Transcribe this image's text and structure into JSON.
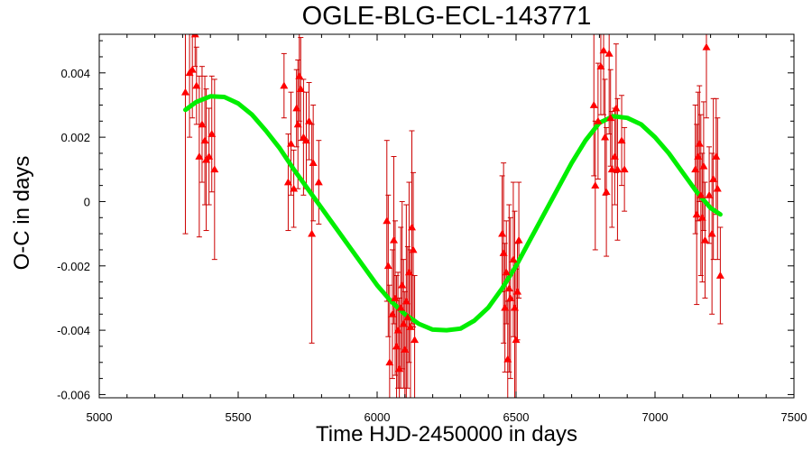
{
  "chart_data": {
    "type": "scatter",
    "title": "OGLE-BLG-ECL-143771",
    "xlabel": "Time HJD-2450000 in days",
    "ylabel": "O-C in days",
    "xlim": [
      5000,
      7500
    ],
    "ylim": [
      -0.0061,
      0.0052
    ],
    "xticks": [
      5000,
      5500,
      6000,
      6500,
      7000,
      7500
    ],
    "xtick_labels": [
      "5000",
      "5500",
      "6000",
      "6500",
      "7000",
      "7500"
    ],
    "yticks": [
      -0.006,
      -0.004,
      -0.002,
      0,
      0.002,
      0.004
    ],
    "ytick_labels": [
      "-0.006",
      "-0.004",
      "-0.002",
      "0",
      "0.002",
      "0.004"
    ],
    "grid": false,
    "colors": {
      "points": "#ff0000",
      "errorbars": "#cc0000",
      "fit": "#00ee00"
    },
    "series": [
      {
        "kind": "points-with-errorbars",
        "points": [
          {
            "x": 5310,
            "y": 0.0034,
            "err": 0.0044
          },
          {
            "x": 5325,
            "y": 0.004,
            "err": 0.002
          },
          {
            "x": 5335,
            "y": 0.0041,
            "err": 0.0015
          },
          {
            "x": 5345,
            "y": 0.0052,
            "err": 0.001
          },
          {
            "x": 5350,
            "y": 0.0036,
            "err": 0.0012
          },
          {
            "x": 5360,
            "y": 0.0014,
            "err": 0.0025
          },
          {
            "x": 5370,
            "y": 0.0024,
            "err": 0.0018
          },
          {
            "x": 5380,
            "y": 0.0019,
            "err": 0.002
          },
          {
            "x": 5385,
            "y": 0.0013,
            "err": 0.0022
          },
          {
            "x": 5395,
            "y": 0.0014,
            "err": 0.0015
          },
          {
            "x": 5405,
            "y": 0.0021,
            "err": 0.0018
          },
          {
            "x": 5415,
            "y": 0.001,
            "err": 0.0028
          },
          {
            "x": 5665,
            "y": 0.0036,
            "err": 0.001
          },
          {
            "x": 5680,
            "y": 0.0006,
            "err": 0.0015
          },
          {
            "x": 5690,
            "y": 0.0018,
            "err": 0.0016
          },
          {
            "x": 5700,
            "y": 0.0004,
            "err": 0.0012
          },
          {
            "x": 5710,
            "y": 0.0029,
            "err": 0.0012
          },
          {
            "x": 5715,
            "y": 0.0024,
            "err": 0.002
          },
          {
            "x": 5720,
            "y": 0.0039,
            "err": 0.0014
          },
          {
            "x": 5725,
            "y": 0.0035,
            "err": 0.0016
          },
          {
            "x": 5735,
            "y": 0.002,
            "err": 0.0018
          },
          {
            "x": 5745,
            "y": 0.0019,
            "err": 0.0015
          },
          {
            "x": 5755,
            "y": 0.0025,
            "err": 0.0012
          },
          {
            "x": 5765,
            "y": -0.001,
            "err": 0.0034
          },
          {
            "x": 5770,
            "y": 0.0012,
            "err": 0.0018
          },
          {
            "x": 5790,
            "y": 0.0006,
            "err": 0.0013
          },
          {
            "x": 6035,
            "y": -0.0006,
            "err": 0.0025
          },
          {
            "x": 6040,
            "y": -0.002,
            "err": 0.0022
          },
          {
            "x": 6045,
            "y": -0.005,
            "err": 0.0024
          },
          {
            "x": 6055,
            "y": -0.0035,
            "err": 0.002
          },
          {
            "x": 6060,
            "y": -0.0012,
            "err": 0.0026
          },
          {
            "x": 6065,
            "y": -0.003,
            "err": 0.0024
          },
          {
            "x": 6070,
            "y": -0.0045,
            "err": 0.0022
          },
          {
            "x": 6075,
            "y": -0.004,
            "err": 0.0018
          },
          {
            "x": 6080,
            "y": -0.0052,
            "err": 0.0022
          },
          {
            "x": 6085,
            "y": -0.0033,
            "err": 0.0025
          },
          {
            "x": 6090,
            "y": -0.0026,
            "err": 0.0026
          },
          {
            "x": 6095,
            "y": -0.0038,
            "err": 0.002
          },
          {
            "x": 6100,
            "y": -0.0046,
            "err": 0.0018
          },
          {
            "x": 6105,
            "y": -0.0031,
            "err": 0.003
          },
          {
            "x": 6110,
            "y": -0.0036,
            "err": 0.0022
          },
          {
            "x": 6115,
            "y": -0.0022,
            "err": 0.0028
          },
          {
            "x": 6120,
            "y": -0.0039,
            "err": 0.0024
          },
          {
            "x": 6125,
            "y": -0.0008,
            "err": 0.003
          },
          {
            "x": 6130,
            "y": -0.0015,
            "err": 0.0024
          },
          {
            "x": 6135,
            "y": -0.0043,
            "err": 0.002
          },
          {
            "x": 6450,
            "y": -0.001,
            "err": 0.0018
          },
          {
            "x": 6455,
            "y": -0.0016,
            "err": 0.0028
          },
          {
            "x": 6460,
            "y": -0.0033,
            "err": 0.002
          },
          {
            "x": 6465,
            "y": -0.0022,
            "err": 0.0016
          },
          {
            "x": 6470,
            "y": -0.0049,
            "err": 0.0018
          },
          {
            "x": 6475,
            "y": -0.0027,
            "err": 0.0026
          },
          {
            "x": 6480,
            "y": -0.003,
            "err": 0.0025
          },
          {
            "x": 6490,
            "y": -0.0018,
            "err": 0.0024
          },
          {
            "x": 6495,
            "y": -0.0033,
            "err": 0.003
          },
          {
            "x": 6500,
            "y": -0.0043,
            "err": 0.0022
          },
          {
            "x": 6505,
            "y": -0.0028,
            "err": 0.0015
          },
          {
            "x": 6510,
            "y": -0.0012,
            "err": 0.0018
          },
          {
            "x": 6780,
            "y": 0.003,
            "err": 0.0022
          },
          {
            "x": 6785,
            "y": 0.0005,
            "err": 0.002
          },
          {
            "x": 6795,
            "y": 0.0025,
            "err": 0.0018
          },
          {
            "x": 6805,
            "y": 0.0042,
            "err": 0.0015
          },
          {
            "x": 6815,
            "y": 0.0047,
            "err": 0.002
          },
          {
            "x": 6820,
            "y": 0.002,
            "err": 0.0018
          },
          {
            "x": 6825,
            "y": 0.0003,
            "err": 0.002
          },
          {
            "x": 6835,
            "y": 0.0046,
            "err": 0.0025
          },
          {
            "x": 6840,
            "y": 0.0026,
            "err": 0.0015
          },
          {
            "x": 6845,
            "y": 0.001,
            "err": 0.0018
          },
          {
            "x": 6855,
            "y": 0.0014,
            "err": 0.0015
          },
          {
            "x": 6860,
            "y": 0.0029,
            "err": 0.002
          },
          {
            "x": 6865,
            "y": 0.001,
            "err": 0.0022
          },
          {
            "x": 6880,
            "y": 0.0019,
            "err": 0.0014
          },
          {
            "x": 6890,
            "y": 0.001,
            "err": 0.0013
          },
          {
            "x": 7145,
            "y": 0.001,
            "err": 0.002
          },
          {
            "x": 7150,
            "y": -0.0004,
            "err": 0.0028
          },
          {
            "x": 7155,
            "y": 0.0014,
            "err": 0.002
          },
          {
            "x": 7160,
            "y": 0.0018,
            "err": 0.0018
          },
          {
            "x": 7165,
            "y": 0.0002,
            "err": 0.0025
          },
          {
            "x": 7170,
            "y": -0.0005,
            "err": 0.002
          },
          {
            "x": 7175,
            "y": 0.0011,
            "err": 0.002
          },
          {
            "x": 7180,
            "y": -0.0012,
            "err": 0.0018
          },
          {
            "x": 7185,
            "y": 0.0048,
            "err": 0.0022
          },
          {
            "x": 7195,
            "y": 0.0002,
            "err": 0.0015
          },
          {
            "x": 7205,
            "y": -0.001,
            "err": 0.0025
          },
          {
            "x": 7210,
            "y": 0.0007,
            "err": 0.0025
          },
          {
            "x": 7220,
            "y": 0.0014,
            "err": 0.0018
          },
          {
            "x": 7225,
            "y": 0.0004,
            "err": 0.0022
          },
          {
            "x": 7235,
            "y": -0.0023,
            "err": 0.0015
          }
        ]
      },
      {
        "kind": "fit-curve",
        "x": [
          5310,
          5350,
          5400,
          5450,
          5500,
          5550,
          5600,
          5650,
          5700,
          5750,
          5800,
          5850,
          5900,
          5950,
          6000,
          6050,
          6100,
          6150,
          6200,
          6250,
          6300,
          6350,
          6400,
          6450,
          6500,
          6550,
          6600,
          6650,
          6700,
          6750,
          6800,
          6850,
          6900,
          6950,
          7000,
          7050,
          7100,
          7150,
          7200,
          7235
        ],
        "y": [
          0.00285,
          0.0031,
          0.00327,
          0.00325,
          0.00305,
          0.0027,
          0.0022,
          0.00165,
          0.001,
          0.0004,
          -0.0002,
          -0.0008,
          -0.0014,
          -0.002,
          -0.0026,
          -0.0031,
          -0.0035,
          -0.0038,
          -0.00398,
          -0.004,
          -0.00395,
          -0.0037,
          -0.0033,
          -0.0027,
          -0.002,
          -0.0012,
          -0.0004,
          0.0004,
          0.0012,
          0.0019,
          0.00245,
          0.00265,
          0.0026,
          0.0024,
          0.002,
          0.0015,
          0.0009,
          0.0003,
          -0.0002,
          -0.0004
        ]
      }
    ]
  }
}
